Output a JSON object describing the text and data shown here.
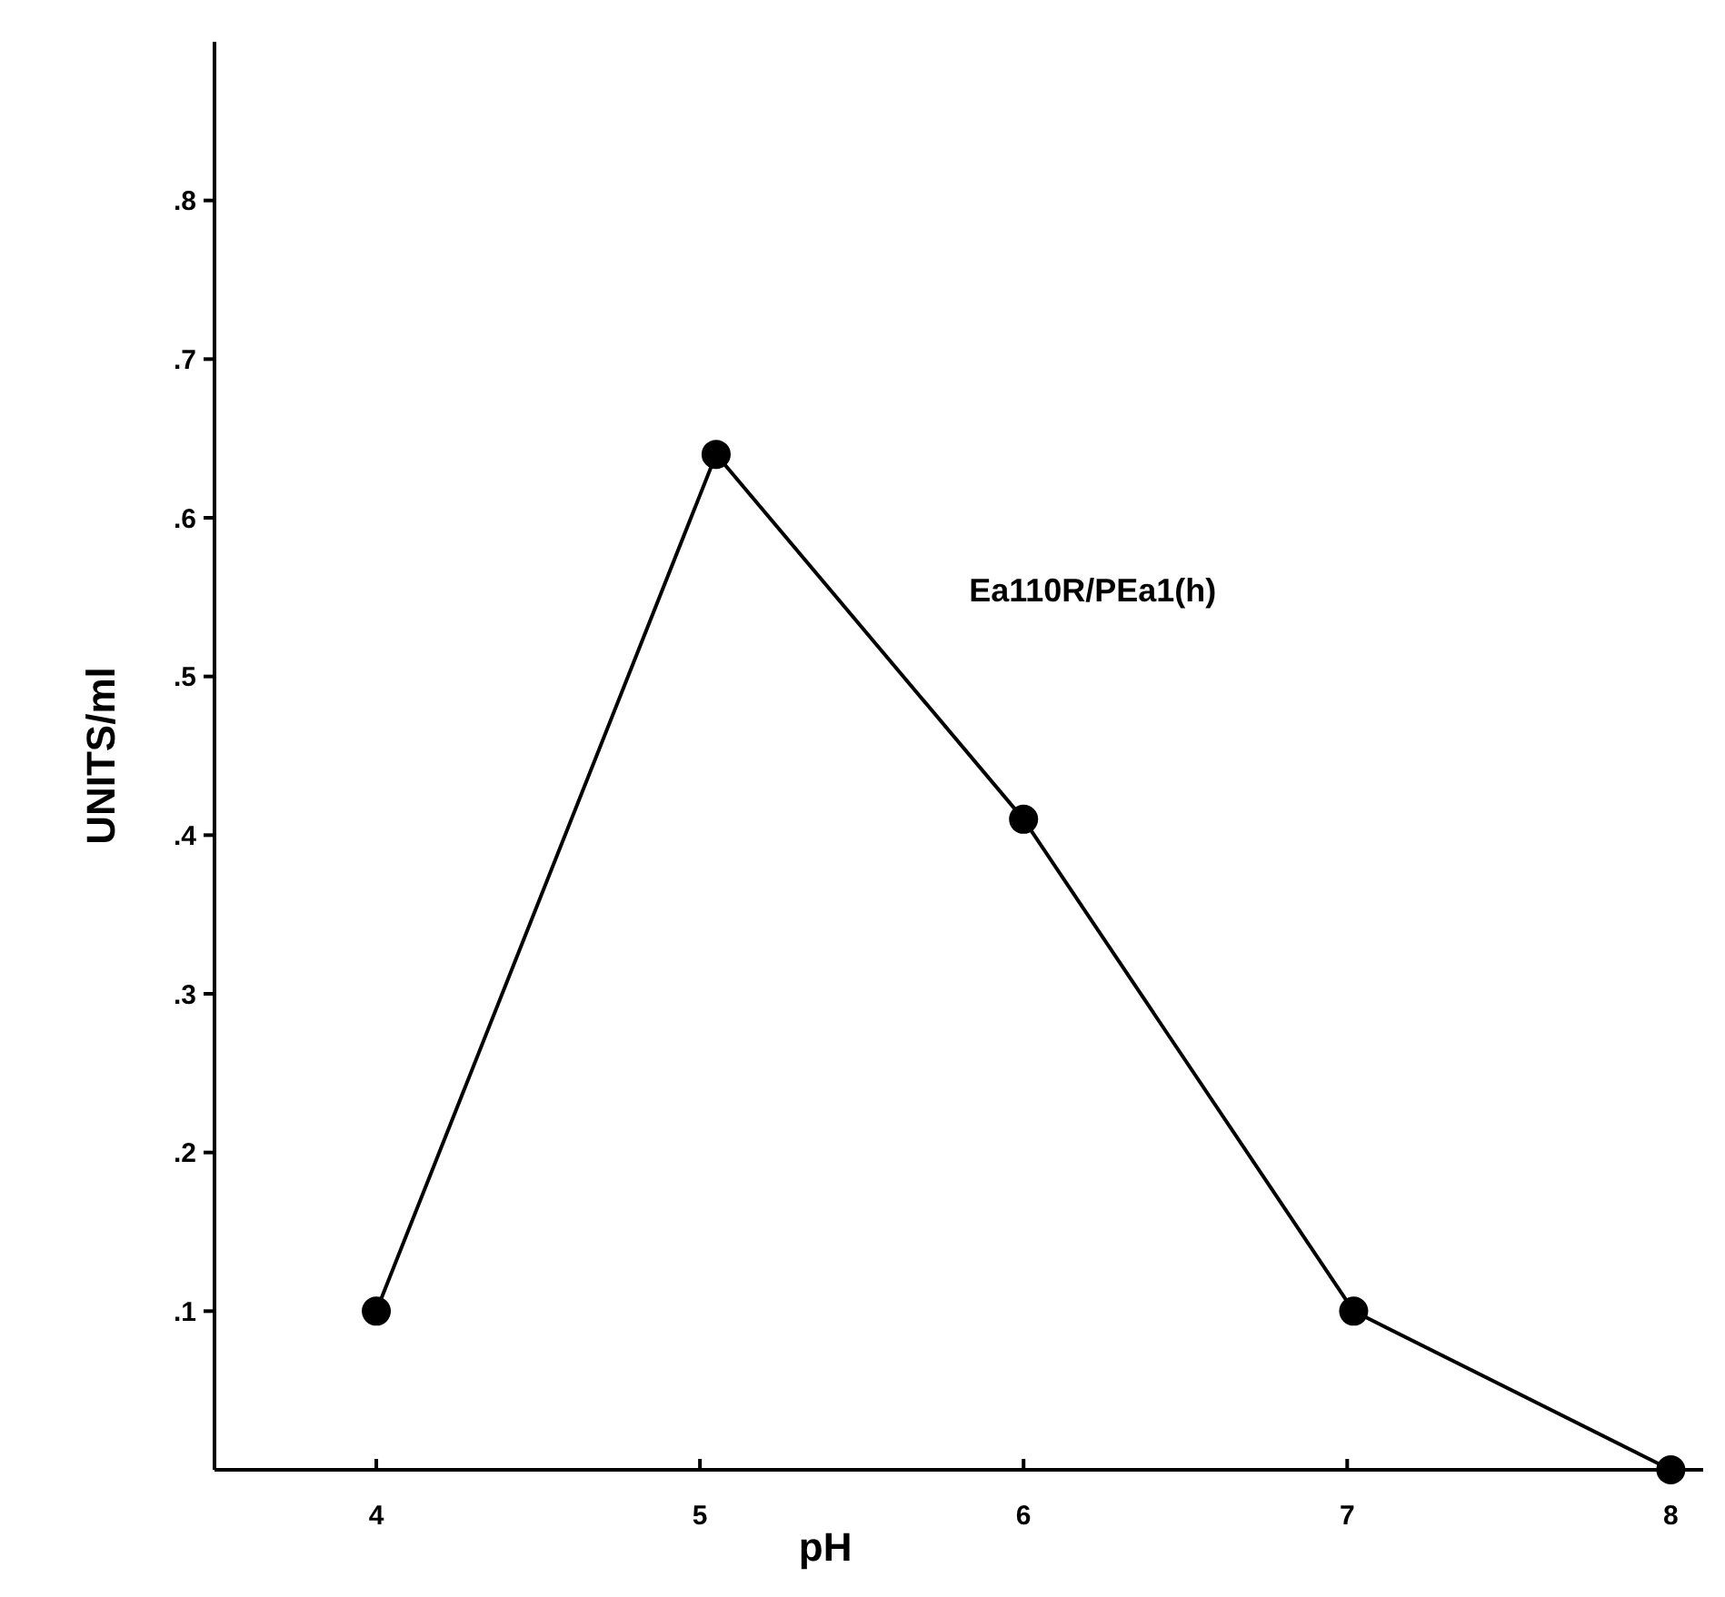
{
  "chart_data": {
    "type": "line",
    "xlabel": "pH",
    "ylabel": "UNITS/ml",
    "xlim": [
      3.5,
      8.1
    ],
    "ylim": [
      0,
      0.9
    ],
    "xticks": [
      4,
      5,
      6,
      7,
      8
    ],
    "yticks": [
      {
        "value": 0.1,
        "label": ".1"
      },
      {
        "value": 0.2,
        "label": ".2"
      },
      {
        "value": 0.3,
        "label": ".3"
      },
      {
        "value": 0.4,
        "label": ".4"
      },
      {
        "value": 0.5,
        "label": ".5"
      },
      {
        "value": 0.6,
        "label": ".6"
      },
      {
        "value": 0.7,
        "label": ".7"
      },
      {
        "value": 0.8,
        "label": ".8"
      }
    ],
    "marker": "circle",
    "line_style": "solid",
    "series": [
      {
        "name": "Ea110R/PEa1(h)",
        "color": "#000000",
        "x": [
          4,
          5.05,
          6,
          7.02,
          8
        ],
        "values": [
          0.1,
          0.64,
          0.41,
          0.1,
          0
        ]
      }
    ]
  }
}
